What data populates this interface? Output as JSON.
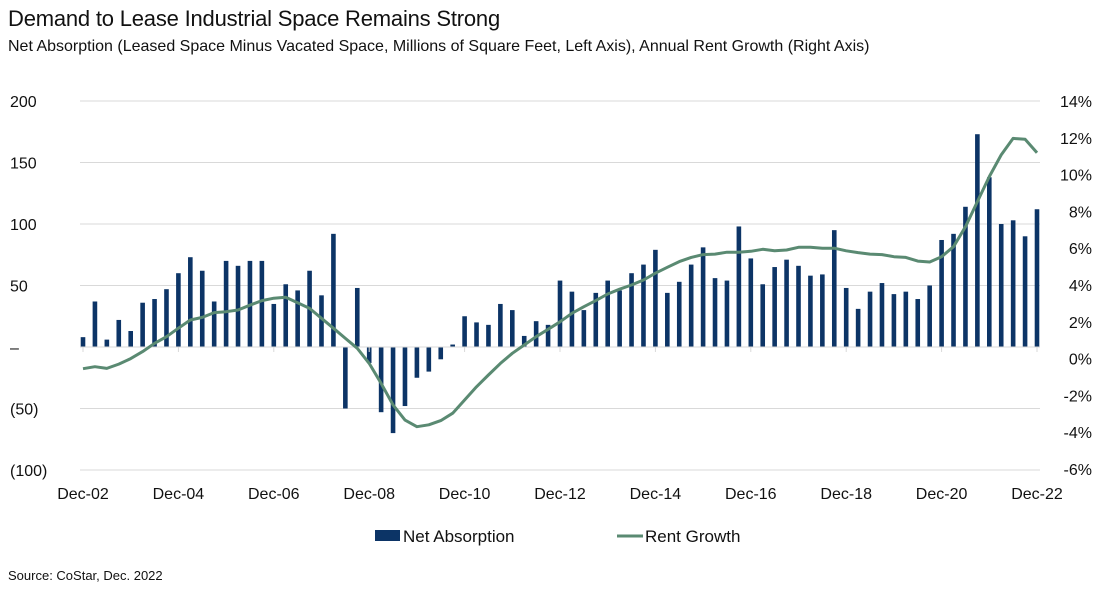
{
  "title": "Demand to Lease Industrial Space Remains Strong",
  "subtitle": "Net Absorption (Leased Space Minus Vacated Space, Millions of Square Feet, Left Axis), Annual Rent Growth (Right Axis)",
  "source": "Source: CoStar, Dec. 2022",
  "chart_data": {
    "type": "bar+line",
    "title": "Demand to Lease Industrial Space Remains Strong",
    "x_range": [
      "Dec-02",
      "Dec-22"
    ],
    "x_frequency": "quarterly",
    "x_tick_labels": [
      "Dec-02",
      "Dec-04",
      "Dec-06",
      "Dec-08",
      "Dec-10",
      "Dec-12",
      "Dec-14",
      "Dec-16",
      "Dec-18",
      "Dec-20",
      "Dec-22"
    ],
    "left_axis": {
      "ylim": [
        -100,
        200
      ],
      "tick_labels": [
        "200",
        "150",
        "100",
        "50",
        "–",
        "(50)",
        "(100)"
      ],
      "tick_values": [
        200,
        150,
        100,
        50,
        0,
        -50,
        -100
      ]
    },
    "right_axis": {
      "ylim": [
        -6,
        14
      ],
      "tick_labels": [
        "14%",
        "12%",
        "10%",
        "8%",
        "6%",
        "4%",
        "2%",
        "0%",
        "-2%",
        "-4%",
        "-6%"
      ],
      "tick_values": [
        14,
        12,
        10,
        8,
        6,
        4,
        2,
        0,
        -2,
        -4,
        -6
      ]
    },
    "grid": true,
    "legend_position": "bottom",
    "series": [
      {
        "name": "Net Absorption",
        "type": "bar",
        "axis": "left",
        "color": "#0c3466",
        "values": [
          8,
          37,
          6,
          22,
          13,
          36,
          39,
          47,
          60,
          73,
          62,
          37,
          70,
          66,
          70,
          70,
          35,
          51,
          46,
          62,
          42,
          92,
          -50,
          48,
          -13,
          -53,
          -70,
          -48,
          -25,
          -20,
          -10,
          2,
          25,
          20,
          18,
          35,
          30,
          9,
          21,
          18,
          54,
          45,
          30,
          44,
          54,
          46,
          60,
          67,
          79,
          44,
          53,
          67,
          81,
          56,
          54,
          98,
          72,
          51,
          65,
          71,
          66,
          58,
          59,
          95,
          48,
          31,
          45,
          52,
          43,
          45,
          39,
          50,
          87,
          92,
          114,
          173,
          138,
          100,
          103,
          90,
          112
        ]
      },
      {
        "name": "Rent Growth",
        "type": "line",
        "axis": "right",
        "color": "#5a8a72",
        "values": [
          -0.55,
          -0.44,
          -0.53,
          -0.3,
          0.0,
          0.38,
          0.83,
          1.19,
          1.65,
          2.1,
          2.24,
          2.5,
          2.55,
          2.64,
          2.9,
          3.15,
          3.28,
          3.33,
          3.04,
          2.73,
          2.19,
          1.65,
          1.1,
          0.56,
          -0.26,
          -1.34,
          -2.52,
          -3.34,
          -3.7,
          -3.6,
          -3.37,
          -2.97,
          -2.25,
          -1.53,
          -0.89,
          -0.26,
          0.29,
          0.74,
          1.19,
          1.59,
          2.0,
          2.46,
          2.82,
          3.15,
          3.51,
          3.77,
          4.0,
          4.27,
          4.64,
          4.96,
          5.27,
          5.5,
          5.65,
          5.68,
          5.78,
          5.78,
          5.83,
          5.94,
          5.86,
          5.9,
          6.05,
          6.05,
          6.0,
          6.0,
          5.86,
          5.76,
          5.68,
          5.65,
          5.54,
          5.5,
          5.3,
          5.25,
          5.54,
          6.08,
          7.17,
          8.53,
          9.89,
          11.07,
          11.97,
          11.92,
          11.19
        ]
      }
    ]
  }
}
